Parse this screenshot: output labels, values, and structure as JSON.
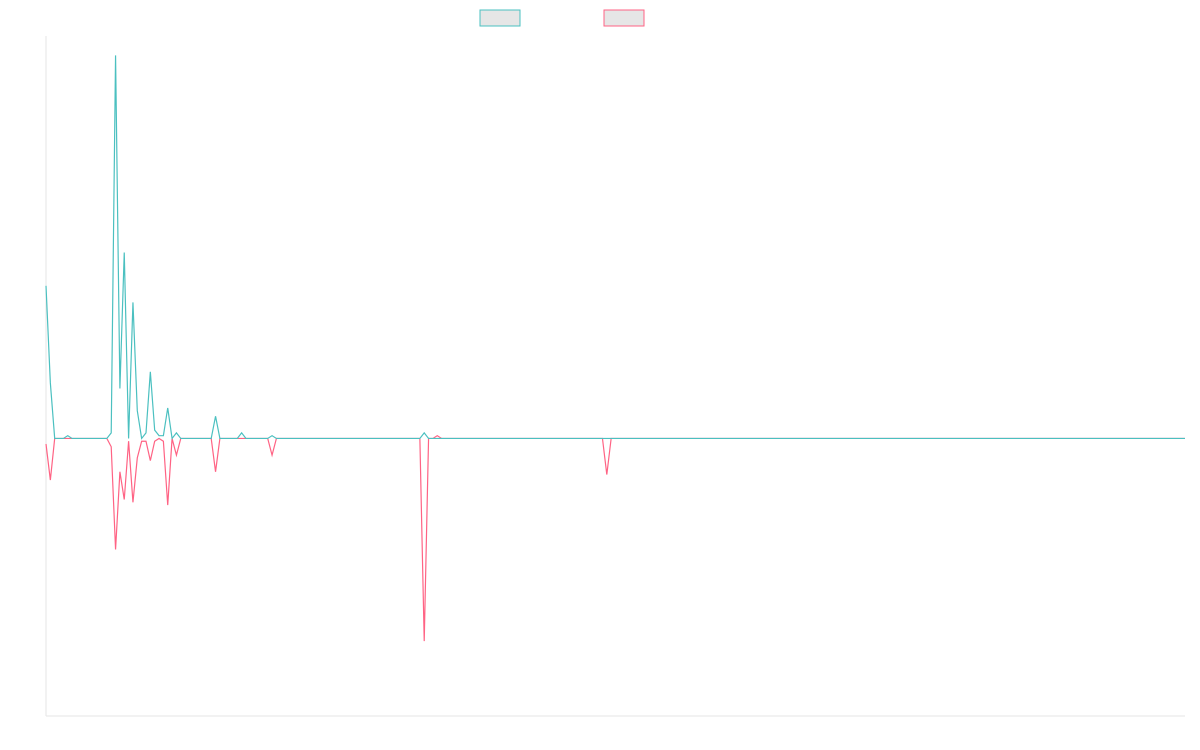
{
  "chart_data": {
    "type": "line",
    "title": "",
    "xlabel": "",
    "ylabel": "",
    "grid": false,
    "legend": "top-center",
    "ylim": [
      -1.0,
      1.45
    ],
    "x": [
      0,
      1,
      2,
      3,
      4,
      5,
      6,
      7,
      8,
      9,
      10,
      11,
      12,
      13,
      14,
      15,
      16,
      17,
      18,
      19,
      20,
      21,
      22,
      23,
      24,
      25,
      26,
      27,
      28,
      29,
      30,
      31,
      32,
      33,
      34,
      35,
      36,
      37,
      38,
      39,
      40,
      41,
      42,
      43,
      44,
      45,
      46,
      47,
      48,
      49,
      50,
      51,
      52,
      53,
      54,
      55,
      56,
      57,
      58,
      59,
      60,
      61,
      62,
      63,
      64,
      65,
      66,
      67,
      68,
      69,
      70,
      71,
      72,
      73,
      74,
      75,
      76,
      77,
      78,
      79,
      80,
      81,
      82,
      83,
      84,
      85,
      86,
      87,
      88,
      89,
      90,
      91,
      92,
      93,
      94,
      95,
      96,
      97,
      98,
      99,
      100,
      101,
      102,
      103,
      104,
      105,
      106,
      107,
      108,
      109,
      110,
      111,
      112,
      113,
      114,
      115,
      116,
      117,
      118,
      119,
      120,
      121,
      122,
      123,
      124,
      125,
      126,
      127,
      128,
      129,
      130,
      131,
      132,
      133,
      134,
      135,
      136,
      137,
      138,
      139,
      140,
      141,
      142,
      143,
      144,
      145,
      146,
      147,
      148,
      149,
      150,
      151,
      152,
      153,
      154,
      155,
      156,
      157,
      158,
      159,
      160,
      161,
      162,
      163,
      164,
      165,
      166,
      167,
      168,
      169,
      170,
      171,
      172,
      173,
      174,
      175,
      176,
      177,
      178,
      179,
      180,
      181,
      182,
      183,
      184,
      185,
      186,
      187,
      188,
      189,
      190,
      191,
      192,
      193,
      194,
      195,
      196,
      197,
      198,
      199,
      200,
      201,
      202,
      203,
      204,
      205,
      206,
      207,
      208,
      209,
      210,
      211,
      212,
      213,
      214,
      215,
      216,
      217,
      218,
      219,
      220,
      221,
      222,
      223,
      224,
      225,
      226,
      227,
      228,
      229,
      230,
      231,
      232,
      233,
      234,
      235,
      236,
      237,
      238,
      239,
      240,
      241,
      242,
      243,
      244,
      245,
      246,
      247,
      248,
      249,
      250,
      251,
      252,
      253,
      254,
      255,
      256,
      257,
      258,
      259,
      260,
      261,
      262
    ],
    "series": [
      {
        "color": "#4bc0c0",
        "values": [
          0.55,
          0.2,
          0,
          0,
          0,
          0.01,
          0,
          0,
          0,
          0,
          0,
          0,
          0,
          0,
          0,
          0.02,
          1.38,
          0.18,
          0.67,
          0,
          0.49,
          0.1,
          0,
          0.02,
          0.24,
          0.03,
          0.01,
          0.01,
          0.11,
          0,
          0.02,
          0,
          0,
          0,
          0,
          0,
          0,
          0,
          0,
          0.08,
          0,
          0,
          0,
          0,
          0,
          0.02,
          0,
          0,
          0,
          0,
          0,
          0,
          0.01,
          0,
          0,
          0,
          0,
          0,
          0,
          0,
          0,
          0,
          0,
          0,
          0,
          0,
          0,
          0,
          0,
          0,
          0,
          0,
          0,
          0,
          0,
          0,
          0,
          0,
          0,
          0,
          0,
          0,
          0,
          0,
          0,
          0,
          0,
          0.02,
          0,
          0,
          0,
          0,
          0,
          0,
          0,
          0,
          0,
          0,
          0,
          0,
          0,
          0,
          0,
          0,
          0,
          0,
          0,
          0,
          0,
          0,
          0,
          0,
          0,
          0,
          0,
          0,
          0,
          0,
          0,
          0,
          0,
          0,
          0,
          0,
          0,
          0,
          0,
          0,
          0,
          0,
          0,
          0,
          0,
          0,
          0,
          0,
          0,
          0,
          0,
          0,
          0,
          0,
          0,
          0,
          0,
          0,
          0,
          0,
          0,
          0,
          0,
          0,
          0,
          0,
          0,
          0,
          0,
          0,
          0,
          0,
          0,
          0,
          0,
          0,
          0,
          0,
          0,
          0,
          0,
          0,
          0,
          0,
          0,
          0,
          0,
          0,
          0,
          0,
          0,
          0,
          0,
          0,
          0,
          0,
          0,
          0,
          0,
          0,
          0,
          0,
          0,
          0,
          0,
          0,
          0,
          0,
          0,
          0,
          0,
          0,
          0,
          0,
          0,
          0,
          0,
          0,
          0,
          0,
          0,
          0,
          0,
          0,
          0,
          0,
          0,
          0,
          0,
          0,
          0,
          0,
          0,
          0,
          0,
          0,
          0,
          0,
          0,
          0,
          0,
          0,
          0,
          0,
          0,
          0,
          0,
          0,
          0,
          0,
          0,
          0,
          0,
          0,
          0,
          0,
          0,
          0,
          0,
          0,
          0,
          0,
          0,
          0,
          0,
          0,
          0,
          0,
          0,
          0,
          0,
          0,
          0,
          0,
          0
        ]
      },
      {
        "color": "#ff6384",
        "values": [
          -0.02,
          -0.15,
          0,
          0,
          0,
          0,
          0,
          0,
          0,
          0,
          0,
          0,
          0,
          0,
          0,
          -0.03,
          -0.4,
          -0.12,
          -0.22,
          -0.01,
          -0.23,
          -0.07,
          -0.01,
          -0.01,
          -0.08,
          -0.01,
          0,
          -0.01,
          -0.24,
          0,
          -0.06,
          0,
          0,
          0,
          0,
          0,
          0,
          0,
          0,
          -0.12,
          0,
          0,
          0,
          0,
          0,
          0,
          0,
          0,
          0,
          0,
          0,
          0,
          -0.06,
          0,
          0,
          0,
          0,
          0,
          0,
          0,
          0,
          0,
          0,
          0,
          0,
          0,
          0,
          0,
          0,
          0,
          0,
          0,
          0,
          0,
          0,
          0,
          0,
          0,
          0,
          0,
          0,
          0,
          0,
          0,
          0,
          0,
          0,
          -0.73,
          0,
          0,
          0.01,
          0,
          0,
          0,
          0,
          0,
          0,
          0,
          0,
          0,
          0,
          0,
          0,
          0,
          0,
          0,
          0,
          0,
          0,
          0,
          0,
          0,
          0,
          0,
          0,
          0,
          0,
          0,
          0,
          0,
          0,
          0,
          0,
          0,
          0,
          0,
          0,
          0,
          0,
          -0.13,
          0,
          0,
          0,
          0,
          0,
          0,
          0,
          0,
          0,
          0,
          0,
          0,
          0,
          0,
          0,
          0,
          0,
          0,
          0,
          0,
          0,
          0,
          0,
          0,
          0,
          0,
          0,
          0,
          0,
          0,
          0,
          0,
          0,
          0,
          0,
          0,
          0,
          0,
          0,
          0,
          0,
          0,
          0,
          0,
          0,
          0,
          0,
          0,
          0,
          0,
          0,
          0,
          0,
          0,
          0,
          0,
          0,
          0,
          0,
          0,
          0,
          0,
          0,
          0,
          0,
          0,
          0,
          0,
          0,
          0,
          0,
          0,
          0,
          0,
          0,
          0,
          0,
          0,
          0,
          0,
          0,
          0,
          0,
          0,
          0,
          0,
          0,
          0,
          0,
          0,
          0,
          0,
          0,
          0,
          0,
          0,
          0,
          0,
          0,
          0,
          0,
          0,
          0,
          0,
          0,
          0,
          0,
          0,
          0,
          0,
          0,
          0,
          0,
          0,
          0,
          0,
          0,
          0,
          0,
          0,
          0,
          0,
          0,
          0,
          0,
          0,
          0,
          0,
          0,
          0,
          0,
          0,
          0
        ]
      }
    ]
  }
}
